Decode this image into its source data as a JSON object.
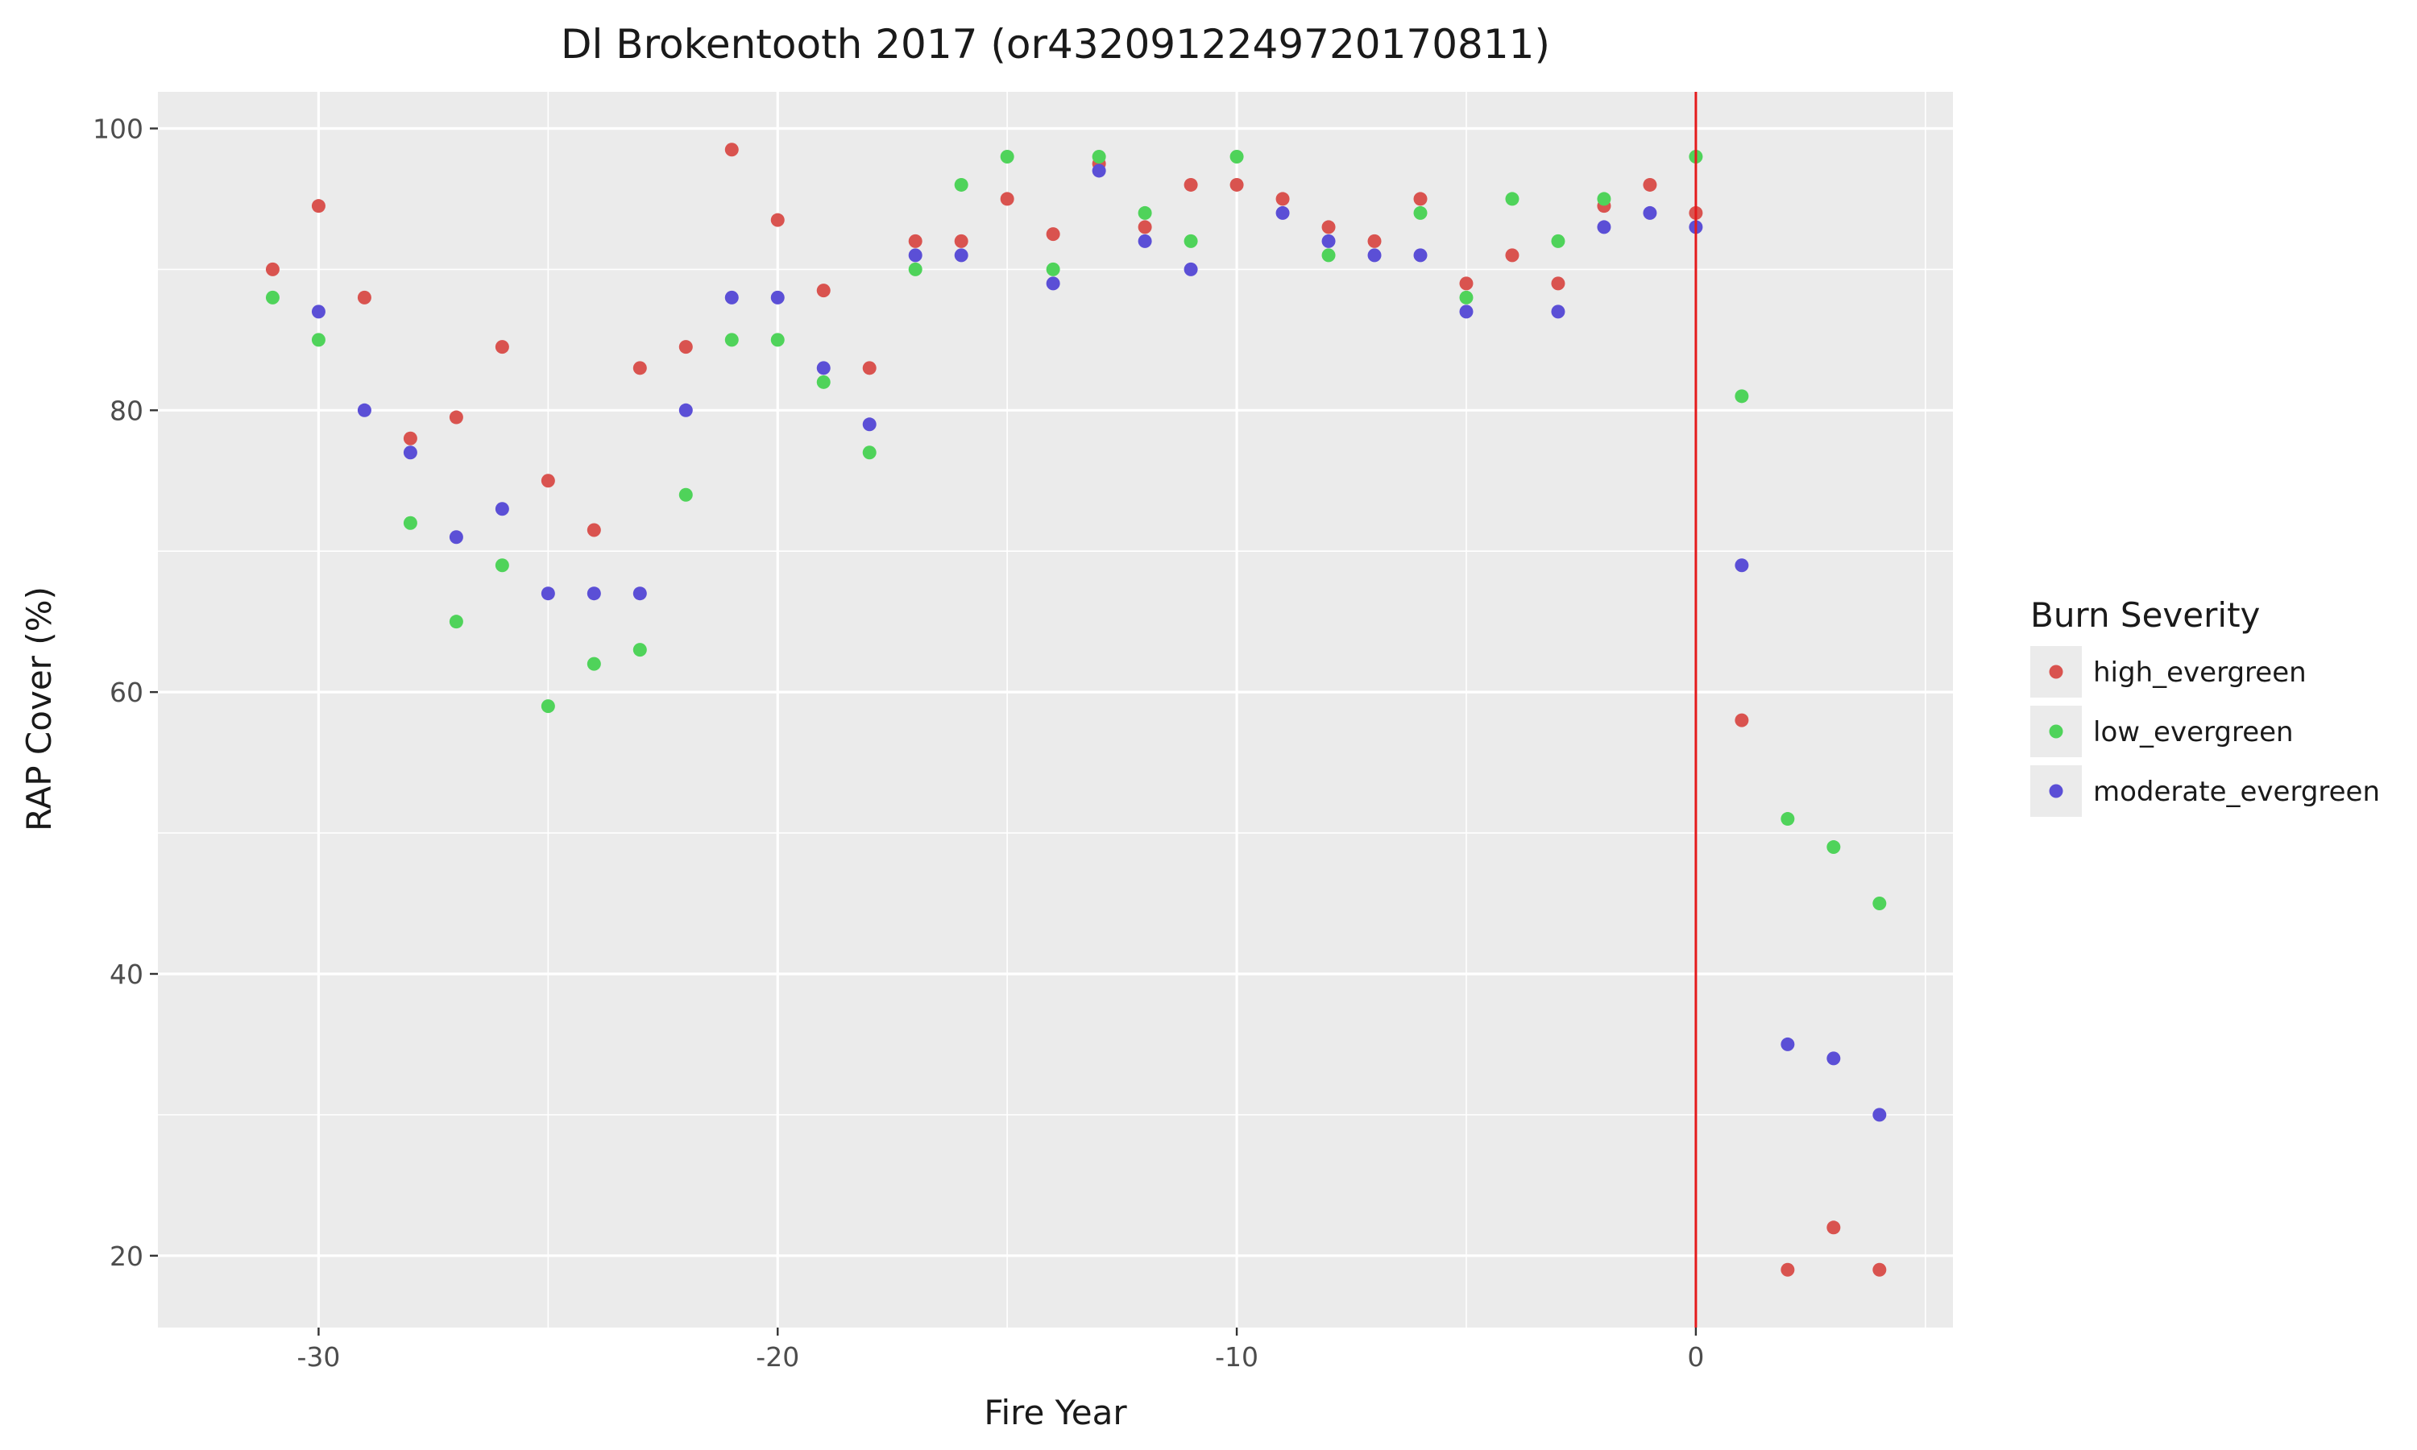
{
  "chart_data": {
    "type": "scatter",
    "title": "Dl Brokentooth 2017 (or4320912249720170811)",
    "xlabel": "Fire Year",
    "ylabel": "RAP Cover (%)",
    "xlim": [
      -33.5,
      5.6
    ],
    "ylim": [
      14.9,
      102.6
    ],
    "x_ticks": [
      -30,
      -20,
      -10,
      0
    ],
    "x_minor_ticks": [
      -25,
      -15,
      -5,
      5
    ],
    "y_ticks": [
      20,
      40,
      60,
      80,
      100
    ],
    "y_minor_ticks": [
      30,
      50,
      70,
      90
    ],
    "grid": true,
    "vline": {
      "x": 0,
      "color": "#e41a1c"
    },
    "legend": {
      "title": "Burn Severity",
      "position": "right"
    },
    "series": [
      {
        "name": "high_evergreen",
        "color": "#d9534f",
        "points": [
          [
            -31,
            90
          ],
          [
            -30,
            94.5
          ],
          [
            -29,
            88
          ],
          [
            -28,
            78
          ],
          [
            -27,
            79.5
          ],
          [
            -26,
            84.5
          ],
          [
            -25,
            75
          ],
          [
            -24,
            71.5
          ],
          [
            -23,
            83
          ],
          [
            -22,
            84.5
          ],
          [
            -21,
            98.5
          ],
          [
            -20,
            93.5
          ],
          [
            -19,
            88.5
          ],
          [
            -18,
            83
          ],
          [
            -17,
            92
          ],
          [
            -16,
            92
          ],
          [
            -15,
            95
          ],
          [
            -14,
            92.5
          ],
          [
            -13,
            97.5
          ],
          [
            -12,
            93
          ],
          [
            -11,
            96
          ],
          [
            -10,
            96
          ],
          [
            -9,
            95
          ],
          [
            -8,
            93
          ],
          [
            -7,
            92
          ],
          [
            -6,
            95
          ],
          [
            -5,
            89
          ],
          [
            -4,
            91
          ],
          [
            -3,
            89
          ],
          [
            -2,
            94.5
          ],
          [
            -1,
            96
          ],
          [
            0,
            94
          ],
          [
            1,
            58
          ],
          [
            2,
            19
          ],
          [
            3,
            22
          ],
          [
            4,
            19
          ]
        ]
      },
      {
        "name": "low_evergreen",
        "color": "#4fd35a",
        "points": [
          [
            -31,
            88
          ],
          [
            -30,
            85
          ],
          [
            -28,
            72
          ],
          [
            -27,
            65
          ],
          [
            -26,
            69
          ],
          [
            -25,
            59
          ],
          [
            -24,
            62
          ],
          [
            -23,
            63
          ],
          [
            -22,
            74
          ],
          [
            -21,
            85
          ],
          [
            -20,
            85
          ],
          [
            -19,
            82
          ],
          [
            -18,
            77
          ],
          [
            -17,
            90
          ],
          [
            -16,
            96
          ],
          [
            -15,
            98
          ],
          [
            -14,
            90
          ],
          [
            -13,
            98
          ],
          [
            -12,
            94
          ],
          [
            -11,
            92
          ],
          [
            -10,
            98
          ],
          [
            -8,
            91
          ],
          [
            -6,
            94
          ],
          [
            -5,
            88
          ],
          [
            -4,
            95
          ],
          [
            -3,
            92
          ],
          [
            -2,
            95
          ],
          [
            0,
            98
          ],
          [
            1,
            81
          ],
          [
            2,
            51
          ],
          [
            3,
            49
          ],
          [
            4,
            45
          ]
        ]
      },
      {
        "name": "moderate_evergreen",
        "color": "#5b4fd6",
        "points": [
          [
            -30,
            87
          ],
          [
            -29,
            80
          ],
          [
            -28,
            77
          ],
          [
            -27,
            71
          ],
          [
            -26,
            73
          ],
          [
            -25,
            67
          ],
          [
            -24,
            67
          ],
          [
            -23,
            67
          ],
          [
            -22,
            80
          ],
          [
            -21,
            88
          ],
          [
            -20,
            88
          ],
          [
            -19,
            83
          ],
          [
            -18,
            79
          ],
          [
            -17,
            91
          ],
          [
            -16,
            91
          ],
          [
            -14,
            89
          ],
          [
            -13,
            97
          ],
          [
            -12,
            92
          ],
          [
            -11,
            90
          ],
          [
            -9,
            94
          ],
          [
            -8,
            92
          ],
          [
            -7,
            91
          ],
          [
            -6,
            91
          ],
          [
            -5,
            87
          ],
          [
            -3,
            87
          ],
          [
            -2,
            93
          ],
          [
            -1,
            94
          ],
          [
            0,
            93
          ],
          [
            1,
            69
          ],
          [
            2,
            35
          ],
          [
            3,
            34
          ],
          [
            4,
            30
          ]
        ]
      }
    ]
  }
}
